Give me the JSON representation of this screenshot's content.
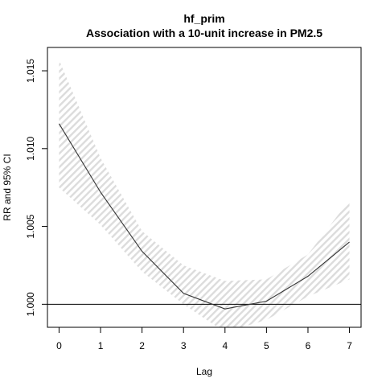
{
  "chart_data": {
    "type": "line",
    "title": "hf_prim",
    "subtitle": "Association with a 10-unit increase in PM2.5",
    "xlabel": "Lag",
    "ylabel": "RR and 95% CI",
    "xlim": [
      -0.28,
      7.28
    ],
    "ylim": [
      0.99852,
      1.0165
    ],
    "x_ticks": [
      "0",
      "1",
      "2",
      "3",
      "4",
      "5",
      "6",
      "7"
    ],
    "y_ticks": [
      "1.000",
      "1.005",
      "1.010",
      "1.015"
    ],
    "grid": false,
    "reference_line": 1.0,
    "ci_style": "hatched",
    "series": [
      {
        "x": [
          0,
          1,
          2,
          3,
          4,
          5,
          6,
          7
        ],
        "values": [
          1.0116,
          1.0072,
          1.0034,
          1.0007,
          0.9997,
          1.0002,
          1.0018,
          1.004
        ],
        "ci_lower": [
          1.0075,
          1.0051,
          1.0021,
          1.0,
          0.9982,
          0.999,
          1.0005,
          1.0016
        ],
        "ci_upper": [
          1.0157,
          1.0094,
          1.0047,
          1.0025,
          1.0015,
          1.0016,
          1.0032,
          1.0067
        ]
      }
    ]
  }
}
